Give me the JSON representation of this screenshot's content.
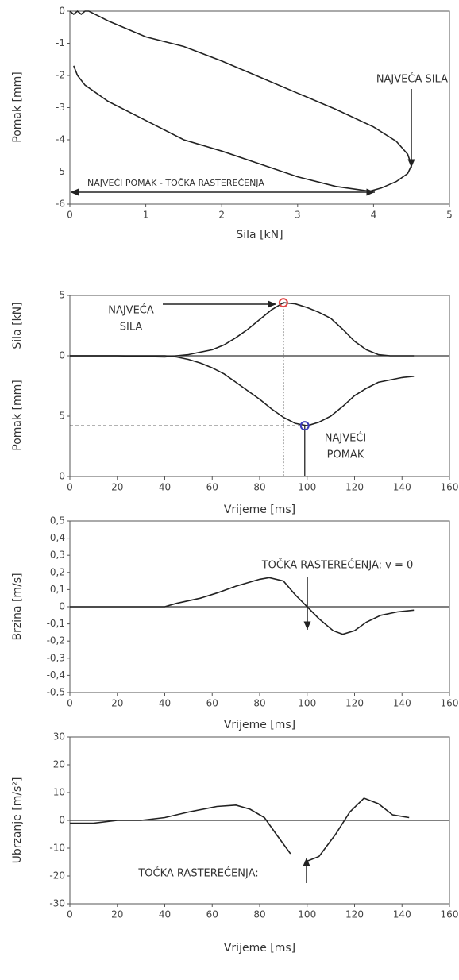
{
  "chart_data": [
    {
      "type": "line",
      "xlabel": "Sila [kN]",
      "ylabel": "Pomak [mm]",
      "x": [
        0,
        0.05,
        0.1,
        0.15,
        0.2,
        0.25,
        0.5,
        1,
        1.5,
        2,
        2.5,
        3,
        3.5,
        4,
        4.3,
        4.45,
        4.5,
        4.45,
        4.3,
        4.1,
        3.95,
        3.5,
        3,
        2.5,
        2,
        1.5,
        1,
        0.5,
        0.2,
        0.1,
        0.05
      ],
      "values": [
        0,
        -0.1,
        0,
        -0.1,
        0,
        0,
        -0.3,
        -0.8,
        -1.1,
        -1.55,
        -2.05,
        -2.55,
        -3.05,
        -3.6,
        -4.05,
        -4.45,
        -4.8,
        -5.05,
        -5.3,
        -5.5,
        -5.6,
        -5.45,
        -5.15,
        -4.75,
        -4.35,
        -4.0,
        -3.4,
        -2.8,
        -2.3,
        -2.0,
        -1.7
      ],
      "color": "#222",
      "xlim": [
        0,
        5
      ],
      "xticks": [
        0,
        1,
        2,
        3,
        4,
        5
      ],
      "ylim": [
        -6,
        0
      ],
      "yticks": [
        0,
        -1,
        -2,
        -3,
        -4,
        -5,
        -6
      ],
      "annotations": [
        [
          "NAJVEĆA SILA"
        ],
        [
          "NAJVEĆI POMAK - TOČKA RASTEREĆENJA"
        ]
      ]
    },
    {
      "type": "line",
      "xlabel": "Vrijeme [ms]",
      "ylabel": "Sila [kN]",
      "y2label": "Pomak [mm]",
      "x": [
        0,
        10,
        20,
        30,
        40,
        45,
        50,
        55,
        60,
        65,
        70,
        75,
        80,
        85,
        90,
        95,
        100,
        105,
        110,
        115,
        120,
        125,
        130,
        135,
        140,
        145
      ],
      "series": [
        {
          "color": "#222",
          "values": [
            0,
            0,
            0,
            -0.05,
            -0.1,
            0,
            0.1,
            0.3,
            0.5,
            0.9,
            1.5,
            2.2,
            3.0,
            3.8,
            4.4,
            4.3,
            4.0,
            3.6,
            3.1,
            2.2,
            1.2,
            0.5,
            0.1,
            0,
            0,
            0
          ]
        },
        {
          "color": "#222",
          "axis": "y2",
          "values": [
            0,
            0,
            0,
            0,
            0,
            0.1,
            0.3,
            0.6,
            1.0,
            1.5,
            2.2,
            2.9,
            3.6,
            4.4,
            5.1,
            5.6,
            5.8,
            5.5,
            5.0,
            4.2,
            3.3,
            2.7,
            2.2,
            2.0,
            1.8,
            1.7
          ]
        }
      ],
      "markers": [
        {
          "x": 90,
          "y": 4.4,
          "color": "#e04848"
        },
        {
          "x": 99,
          "y": 5.8,
          "color": "#3a3ab8",
          "axis": "y2"
        }
      ],
      "xlim": [
        0,
        160
      ],
      "xticks": [
        0,
        20,
        40,
        60,
        80,
        100,
        120,
        140,
        160
      ],
      "ylim": [
        -10,
        5
      ],
      "yticks": [
        0,
        5
      ],
      "y2lim": [
        10,
        -5
      ],
      "y2ticks": [
        5,
        {
          "value": 10,
          "label": "0"
        }
      ],
      "zero_line": true,
      "annotations": [
        [
          "NAJVEĆA",
          "SILA"
        ],
        [
          "NAJVEĆI",
          "POMAK"
        ]
      ]
    },
    {
      "type": "line",
      "xlabel": "Vrijeme [ms]",
      "ylabel": "Brzina [m/s]",
      "x": [
        0,
        10,
        20,
        30,
        40,
        45,
        55,
        62,
        70,
        80,
        84,
        90,
        95,
        100,
        105,
        111,
        115,
        120,
        125,
        131,
        138,
        145
      ],
      "values": [
        0,
        0,
        0,
        0,
        0,
        0.02,
        0.05,
        0.08,
        0.12,
        0.16,
        0.17,
        0.15,
        0.07,
        0,
        -0.07,
        -0.14,
        -0.16,
        -0.14,
        -0.09,
        -0.05,
        -0.03,
        -0.02
      ],
      "color": "#222",
      "xlim": [
        0,
        160
      ],
      "xticks": [
        0,
        20,
        40,
        60,
        80,
        100,
        120,
        140,
        160
      ],
      "ylim": [
        -0.5,
        0.5
      ],
      "yticks": [
        {
          "value": 0.5,
          "label": "0,5"
        },
        {
          "value": 0.4,
          "label": "0,4"
        },
        {
          "value": 0.3,
          "label": "0,3"
        },
        {
          "value": 0.2,
          "label": "0,2"
        },
        {
          "value": 0.1,
          "label": "0,1"
        },
        0,
        {
          "value": -0.1,
          "label": "-0,1"
        },
        {
          "value": -0.2,
          "label": "-0,2"
        },
        {
          "value": -0.3,
          "label": "-0,3"
        },
        {
          "value": -0.4,
          "label": "-0,4"
        },
        {
          "value": -0.5,
          "label": "-0,5"
        }
      ],
      "zero_line": true,
      "annotations": [
        [
          "TOČKA RASTEREĆENJA: v = 0"
        ]
      ]
    },
    {
      "type": "line",
      "xlabel": "Vrijeme [ms]",
      "ylabel": "Ubrzanje [m/s²]",
      "x": [
        0,
        10,
        20,
        30,
        40,
        50,
        62,
        70,
        76,
        82,
        87,
        93,
        96,
        99,
        105,
        112,
        118,
        124,
        130,
        136,
        143
      ],
      "values": [
        -1,
        -1,
        0,
        0,
        1,
        3,
        5,
        5.5,
        4,
        1,
        -5,
        -12,
        null,
        -15,
        -13,
        -5,
        3,
        8,
        6,
        2,
        1
      ],
      "color": "#222",
      "xlim": [
        0,
        160
      ],
      "xticks": [
        0,
        20,
        40,
        60,
        80,
        100,
        120,
        140,
        160
      ],
      "ylim": [
        -30,
        30
      ],
      "yticks": [
        30,
        20,
        10,
        0,
        -10,
        -20,
        -30
      ],
      "zero_line": true,
      "annotations": [
        [
          "TOČKA RASTEREĆENJA:"
        ]
      ]
    }
  ]
}
